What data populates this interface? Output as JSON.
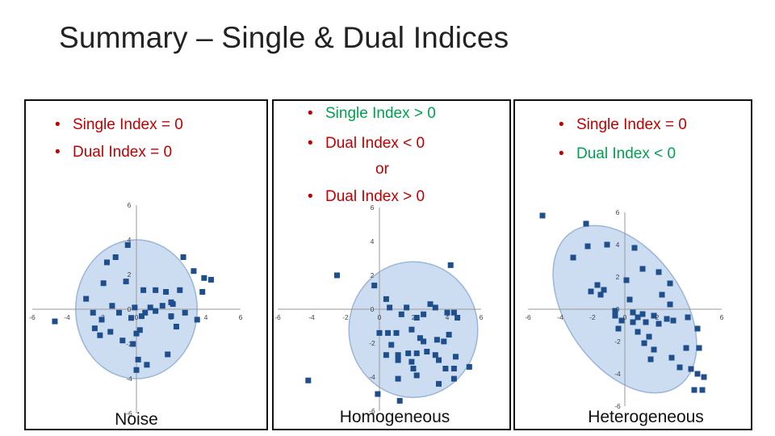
{
  "title": "Summary – Single & Dual Indices",
  "colors": {
    "red": "#c00000",
    "green": "#00a050",
    "ellipse": "#c9daf0",
    "ellipse_stroke": "#9bb6d8",
    "point": "#1f4e8c",
    "axis": "#9a9a9a"
  },
  "panels": [
    {
      "caption": "Noise",
      "bullets": [
        {
          "text": "Single Index = 0",
          "color": "#c00000"
        },
        {
          "text": "Dual Index = 0",
          "color": "#c00000"
        }
      ]
    },
    {
      "caption": "Homogeneous",
      "bullets": [
        {
          "text": "Single Index > 0",
          "color": "#00a050"
        },
        {
          "text": "Dual Index < 0",
          "color": "#c00000"
        },
        {
          "text": "or",
          "color": "#c00000"
        },
        {
          "text": "Dual Index > 0",
          "color": "#c00000"
        }
      ]
    },
    {
      "caption": "Heterogeneous",
      "bullets": [
        {
          "text": "Single Index = 0",
          "color": "#c00000"
        },
        {
          "text": "Dual Index < 0",
          "color": "#00a050"
        }
      ]
    }
  ],
  "chart_data": [
    {
      "type": "scatter",
      "title": "Noise",
      "xlim": [
        -6,
        6
      ],
      "ylim": [
        -6,
        6
      ],
      "xticks": [
        "-6",
        "-4",
        "-2",
        "0",
        "2",
        "4",
        "6"
      ],
      "yticks": [
        "6",
        "4",
        "2",
        "0",
        "-2",
        "-4",
        "-6"
      ],
      "ellipse": {
        "cx": 0,
        "cy": 0,
        "rx": 3.5,
        "ry": 4.0,
        "angle": 0
      },
      "points": [
        [
          -4.7,
          -0.7
        ],
        [
          -2.9,
          0.6
        ],
        [
          -2.5,
          -0.2
        ],
        [
          -2.4,
          -1.1
        ],
        [
          -2.1,
          -1.5
        ],
        [
          -2.0,
          -0.6
        ],
        [
          -1.9,
          1.5
        ],
        [
          -1.7,
          2.7
        ],
        [
          -1.5,
          -1.3
        ],
        [
          -1.4,
          0.2
        ],
        [
          -1.2,
          3.0
        ],
        [
          -1.0,
          -0.2
        ],
        [
          -0.8,
          -1.8
        ],
        [
          -0.6,
          1.6
        ],
        [
          -0.5,
          3.7
        ],
        [
          -0.3,
          -0.5
        ],
        [
          -0.2,
          -2.0
        ],
        [
          -0.1,
          0.1
        ],
        [
          0.0,
          -1.4
        ],
        [
          0.0,
          -3.5
        ],
        [
          0.1,
          -2.9
        ],
        [
          0.2,
          -1.2
        ],
        [
          0.3,
          -0.4
        ],
        [
          0.4,
          1.1
        ],
        [
          0.5,
          -0.2
        ],
        [
          0.6,
          -3.2
        ],
        [
          0.8,
          0.1
        ],
        [
          1.1,
          -0.1
        ],
        [
          1.1,
          1.1
        ],
        [
          1.5,
          0.2
        ],
        [
          1.7,
          1.0
        ],
        [
          1.8,
          -2.6
        ],
        [
          2.0,
          0.4
        ],
        [
          2.0,
          -0.4
        ],
        [
          2.1,
          0.3
        ],
        [
          2.3,
          -1.0
        ],
        [
          2.5,
          1.1
        ],
        [
          2.7,
          3.0
        ],
        [
          2.8,
          -0.2
        ],
        [
          3.3,
          2.2
        ],
        [
          3.5,
          -0.6
        ],
        [
          3.8,
          1.0
        ],
        [
          3.9,
          1.8
        ],
        [
          4.3,
          1.7
        ]
      ]
    },
    {
      "type": "scatter",
      "title": "Homogeneous",
      "xlim": [
        -6,
        6
      ],
      "ylim": [
        -6,
        6
      ],
      "xticks": [
        "-6",
        "-4",
        "-2",
        "0",
        "2",
        "4",
        "6"
      ],
      "yticks": [
        "6",
        "4",
        "2",
        "0",
        "-2",
        "-4",
        "-6"
      ],
      "ellipse": {
        "cx": 2.0,
        "cy": -1.2,
        "rx": 3.8,
        "ry": 4.0,
        "angle": 0
      },
      "points": [
        [
          -4.2,
          -4.2
        ],
        [
          -2.5,
          2.0
        ],
        [
          -0.3,
          1.4
        ],
        [
          -0.1,
          -5.0
        ],
        [
          0.0,
          -1.4
        ],
        [
          0.4,
          0.6
        ],
        [
          0.4,
          -2.7
        ],
        [
          0.5,
          -1.4
        ],
        [
          0.6,
          0.1
        ],
        [
          0.7,
          -2.1
        ],
        [
          1.0,
          -1.4
        ],
        [
          1.1,
          -2.7
        ],
        [
          1.1,
          -3.0
        ],
        [
          1.1,
          -4.1
        ],
        [
          1.2,
          -5.4
        ],
        [
          1.3,
          -0.3
        ],
        [
          1.6,
          0.1
        ],
        [
          1.7,
          -2.6
        ],
        [
          1.9,
          -1.2
        ],
        [
          1.9,
          -3.1
        ],
        [
          2.0,
          -3.5
        ],
        [
          2.2,
          -0.5
        ],
        [
          2.2,
          -2.6
        ],
        [
          2.2,
          -3.9
        ],
        [
          2.4,
          -1.7
        ],
        [
          2.6,
          -0.3
        ],
        [
          2.6,
          -1.9
        ],
        [
          2.8,
          -2.5
        ],
        [
          3.0,
          0.3
        ],
        [
          3.3,
          0.1
        ],
        [
          3.3,
          -2.7
        ],
        [
          3.4,
          -1.8
        ],
        [
          3.5,
          -3.0
        ],
        [
          3.5,
          -4.4
        ],
        [
          3.8,
          -1.9
        ],
        [
          4.0,
          -0.2
        ],
        [
          4.1,
          -1.5
        ],
        [
          4.4,
          -0.2
        ],
        [
          4.4,
          -3.5
        ],
        [
          4.6,
          -0.5
        ],
        [
          4.5,
          -2.8
        ],
        [
          3.9,
          -3.5
        ],
        [
          4.2,
          2.6
        ],
        [
          4.4,
          -4.1
        ],
        [
          5.3,
          -3.4
        ]
      ]
    },
    {
      "type": "scatter",
      "title": "Heterogeneous",
      "xlim": [
        -6,
        6
      ],
      "ylim": [
        -6,
        6
      ],
      "xticks": [
        "-6",
        "-4",
        "-2",
        "0",
        "2",
        "4",
        "6"
      ],
      "yticks": [
        "6",
        "4",
        "2",
        "0",
        "-2",
        "-4",
        "-6"
      ],
      "ellipse": {
        "cx": 0,
        "cy": 0,
        "rx": 3.6,
        "ry": 5.8,
        "angle": -35
      },
      "points": [
        [
          -5.1,
          5.8
        ],
        [
          -3.2,
          3.2
        ],
        [
          -2.4,
          5.3
        ],
        [
          -2.3,
          3.9
        ],
        [
          -2.1,
          1.1
        ],
        [
          -1.7,
          1.5
        ],
        [
          -1.5,
          0.9
        ],
        [
          -1.3,
          1.2
        ],
        [
          -1.1,
          4.0
        ],
        [
          -0.6,
          -0.1
        ],
        [
          -0.4,
          -1.2
        ],
        [
          -0.2,
          -0.7
        ],
        [
          0.1,
          1.8
        ],
        [
          0.3,
          0.6
        ],
        [
          0.5,
          -0.2
        ],
        [
          0.5,
          -0.8
        ],
        [
          0.8,
          -0.5
        ],
        [
          0.8,
          -1.4
        ],
        [
          1.1,
          -0.3
        ],
        [
          1.2,
          -2.1
        ],
        [
          1.3,
          -0.8
        ],
        [
          1.5,
          -1.7
        ],
        [
          1.6,
          -3.1
        ],
        [
          1.8,
          -0.4
        ],
        [
          1.8,
          -2.5
        ],
        [
          2.1,
          -0.9
        ],
        [
          2.3,
          0.9
        ],
        [
          2.6,
          -0.6
        ],
        [
          2.8,
          1.6
        ],
        [
          2.8,
          0.3
        ],
        [
          3.0,
          -0.7
        ],
        [
          3.4,
          -3.6
        ],
        [
          3.8,
          -2.4
        ],
        [
          3.9,
          -0.5
        ],
        [
          4.1,
          -3.7
        ],
        [
          4.3,
          -5.0
        ],
        [
          4.5,
          -4.0
        ],
        [
          4.6,
          -2.4
        ],
        [
          4.9,
          -4.2
        ],
        [
          4.8,
          -5.0
        ],
        [
          2.1,
          2.3
        ],
        [
          0.6,
          3.8
        ],
        [
          1.1,
          2.5
        ],
        [
          -0.6,
          -0.4
        ],
        [
          4.5,
          -1.2
        ],
        [
          2.9,
          -3.0
        ]
      ]
    }
  ]
}
